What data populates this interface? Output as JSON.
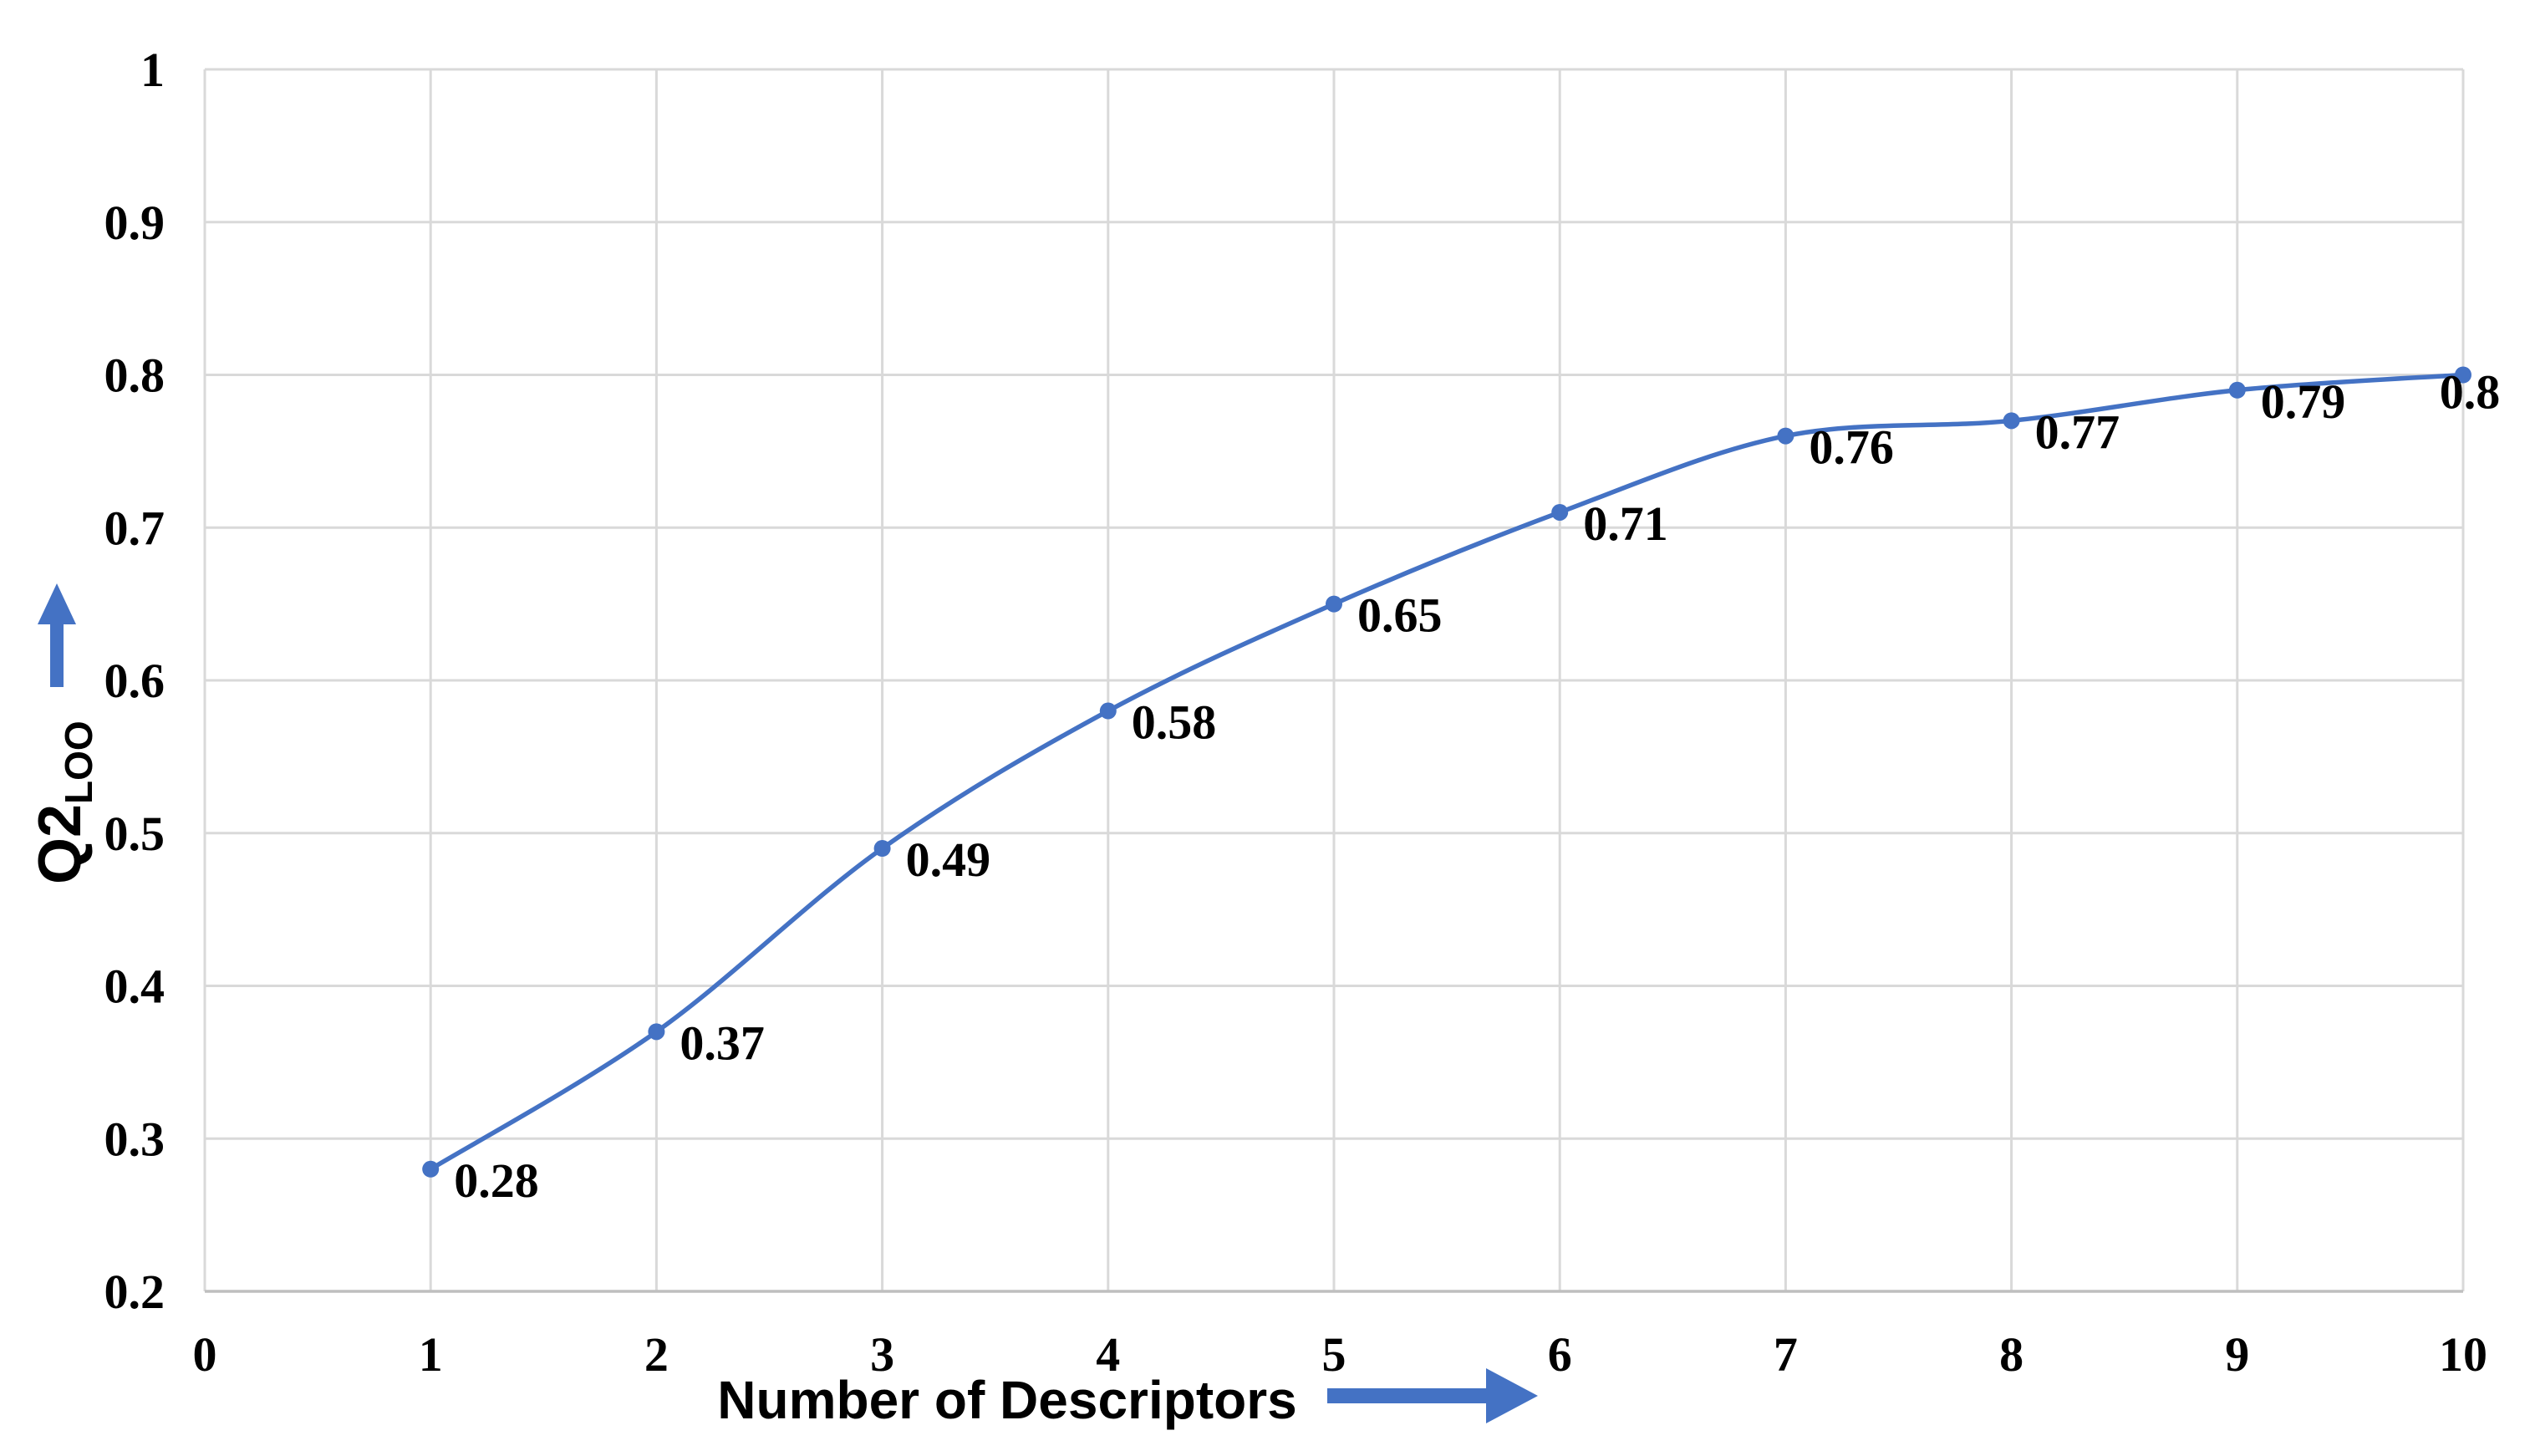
{
  "chart_data": {
    "type": "line",
    "title": "",
    "xlabel": "Number of Descriptors",
    "ylabel": "Q2",
    "ylabel_subscript": "LOO",
    "x": [
      1,
      2,
      3,
      4,
      5,
      6,
      7,
      8,
      9,
      10
    ],
    "values": [
      0.28,
      0.37,
      0.49,
      0.58,
      0.65,
      0.71,
      0.76,
      0.77,
      0.79,
      0.8
    ],
    "point_labels": [
      "0.28",
      "0.37",
      "0.49",
      "0.58",
      "0.65",
      "0.71",
      "0.76",
      "0.77",
      "0.79",
      "0.8"
    ],
    "xlim": [
      0,
      10
    ],
    "ylim": [
      0.2,
      1
    ],
    "x_tick_values": [
      0,
      1,
      2,
      3,
      4,
      5,
      6,
      7,
      8,
      9,
      10
    ],
    "x_tick_labels": [
      "0",
      "1",
      "2",
      "3",
      "4",
      "5",
      "6",
      "7",
      "8",
      "9",
      "10"
    ],
    "y_tick_values": [
      0.2,
      0.3,
      0.4,
      0.5,
      0.6,
      0.7,
      0.8,
      0.9,
      1
    ],
    "y_tick_labels": [
      "0.2",
      "0.3",
      "0.4",
      "0.5",
      "0.6",
      "0.7",
      "0.8",
      "0.9",
      "1"
    ],
    "grid": true,
    "legend": false,
    "marker": "circle",
    "line_smooth": true,
    "colors": {
      "series": "#4472C4",
      "arrow": "#4472C4",
      "grid": "#D9D9D9",
      "axis": "#BFBFBF",
      "text": "#000000"
    }
  }
}
